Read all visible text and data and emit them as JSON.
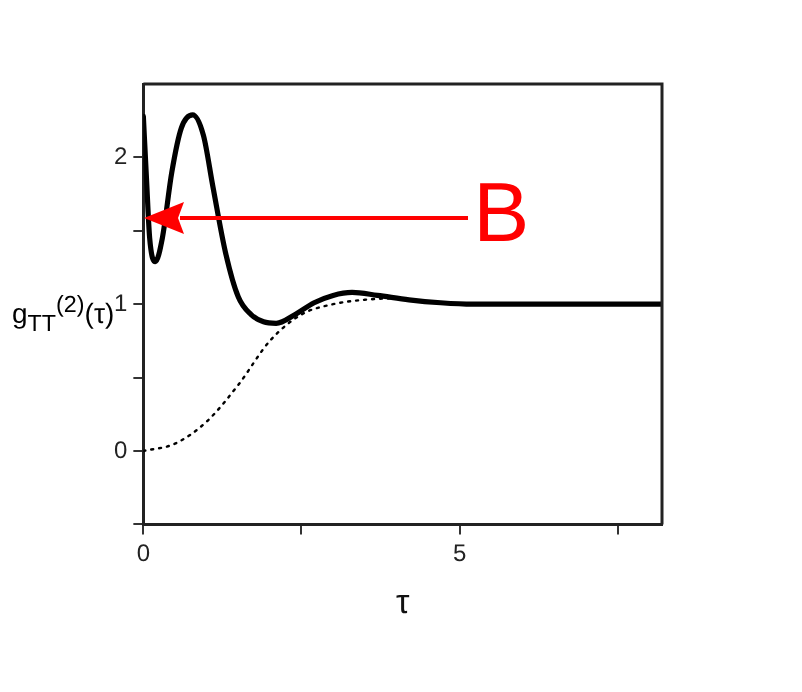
{
  "chart_data": {
    "type": "line",
    "xlabel": "τ",
    "ylabel": "g$_{TT}$$^{(2)}$(τ)",
    "xlim": [
      0,
      8.2
    ],
    "xticks": [
      0,
      {
        "value": 2.5,
        "label": null
      },
      5,
      {
        "value": 7.5,
        "label": null
      }
    ],
    "ylim": [
      -0.5,
      2.5
    ],
    "yticks": [
      {
        "value": -0.5,
        "label": null
      },
      0,
      {
        "value": 0.5,
        "label": null
      },
      1,
      {
        "value": 1.5,
        "label": null
      },
      2
    ],
    "grid": false,
    "legend": false,
    "marker": "none",
    "annotations": [
      "B"
    ],
    "series": [
      {
        "color": "#000000",
        "line_style": "solid",
        "x": [
          0,
          0.05,
          0.1,
          0.19,
          0.3,
          0.45,
          0.6,
          0.78,
          0.95,
          1.1,
          1.3,
          1.5,
          1.7,
          1.9,
          2.1,
          2.4,
          2.7,
          3.0,
          3.3,
          3.7,
          4.2,
          4.7,
          5.2,
          6,
          7,
          8.2
        ],
        "values": [
          2.28,
          1.85,
          1.45,
          1.29,
          1.45,
          1.9,
          2.2,
          2.29,
          2.15,
          1.8,
          1.35,
          1.05,
          0.93,
          0.88,
          0.87,
          0.93,
          1.01,
          1.06,
          1.08,
          1.06,
          1.03,
          1.01,
          1.0,
          1.0,
          1.0,
          1.0
        ]
      },
      {
        "color": "#000000",
        "line_style": "dotted",
        "x": [
          0,
          0.5,
          1,
          1.5,
          2,
          2.5,
          3,
          3.5,
          4,
          4.5,
          5,
          6,
          7,
          8.2
        ],
        "values": [
          0,
          0.05,
          0.2,
          0.45,
          0.75,
          0.93,
          1.0,
          1.03,
          1.04,
          1.02,
          1.0,
          1.0,
          1.0,
          1.0
        ]
      }
    ]
  }
}
